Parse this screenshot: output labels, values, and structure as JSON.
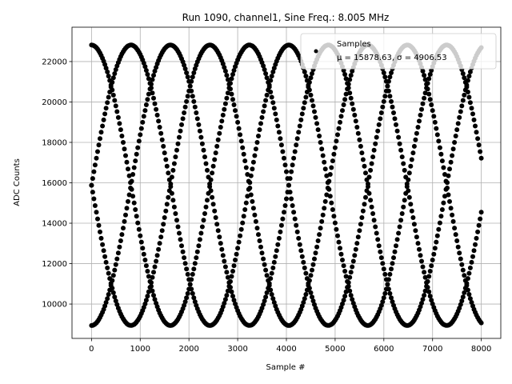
{
  "chart_data": {
    "type": "scatter",
    "title": "Run 1090, channel1, Sine Freq.: 8.005 MHz",
    "xlabel": "Sample #",
    "ylabel": "ADC Counts",
    "xlim": [
      -400,
      8400
    ],
    "ylim": [
      8300,
      23700
    ],
    "xticks": [
      0,
      1000,
      2000,
      3000,
      4000,
      5000,
      6000,
      7000,
      8000
    ],
    "yticks": [
      10000,
      12000,
      14000,
      16000,
      18000,
      20000,
      22000
    ],
    "grid": true,
    "legend_position": "top-right",
    "sine_model": {
      "mean": 15878.63,
      "amplitude": 6940,
      "period_samples": 3240,
      "phase_offsets_samples": [
        0,
        810,
        1620,
        2430
      ],
      "x_range": [
        0,
        8000
      ]
    },
    "series": [
      {
        "name": "Samples",
        "legend_label": "μ = 15878.63, σ = 4906.53",
        "color": "#000000"
      }
    ]
  }
}
